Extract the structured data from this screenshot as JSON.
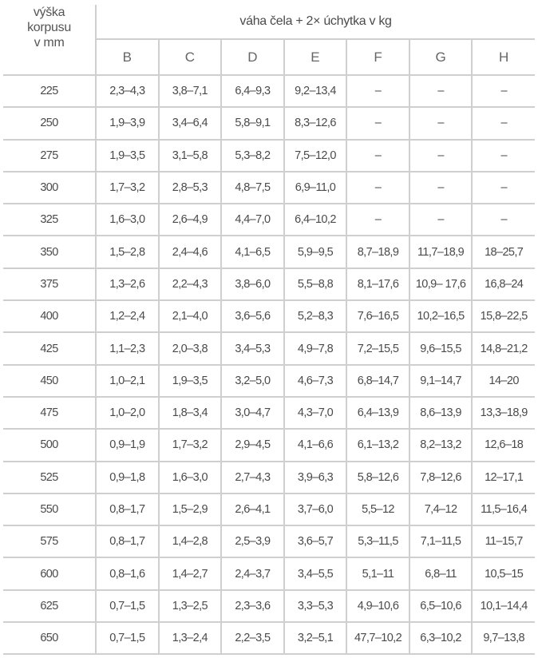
{
  "header": {
    "row_label": [
      "výška",
      "korpusu",
      "v mm"
    ],
    "group_label": "váha čela + 2× úchytka v kg",
    "columns": [
      "B",
      "C",
      "D",
      "E",
      "F",
      "G",
      "H"
    ]
  },
  "rows": [
    {
      "height": "225",
      "values": [
        "2,3–4,3",
        "3,8–7,1",
        "6,4–9,3",
        "9,2–13,4",
        "–",
        "–",
        "–"
      ]
    },
    {
      "height": "250",
      "values": [
        "1,9–3,9",
        "3,4–6,4",
        "5,8–9,1",
        "8,3–12,6",
        "–",
        "–",
        "–"
      ]
    },
    {
      "height": "275",
      "values": [
        "1,9–3,5",
        "3,1–5,8",
        "5,3–8,2",
        "7,5–12,0",
        "–",
        "–",
        "–"
      ]
    },
    {
      "height": "300",
      "values": [
        "1,7–3,2",
        "2,8–5,3",
        "4,8–7,5",
        "6,9–11,0",
        "–",
        "–",
        "–"
      ]
    },
    {
      "height": "325",
      "values": [
        "1,6–3,0",
        "2,6–4,9",
        "4,4–7,0",
        "6,4–10,2",
        "–",
        "–",
        "–"
      ]
    },
    {
      "height": "350",
      "values": [
        "1,5–2,8",
        "2,4–4,6",
        "4,1–6,5",
        "5,9–9,5",
        "8,7–18,9",
        "11,7–18,9",
        "18–25,7"
      ]
    },
    {
      "height": "375",
      "values": [
        "1,3–2,6",
        "2,2–4,3",
        "3,8–6,0",
        "5,5–8,8",
        "8,1–17,6",
        "10,9– 17,6",
        "16,8–24"
      ]
    },
    {
      "height": "400",
      "values": [
        "1,2–2,4",
        "2,1–4,0",
        "3,6–5,6",
        "5,2–8,3",
        "7,6–16,5",
        "10,2–16,5",
        "15,8–22,5"
      ]
    },
    {
      "height": "425",
      "values": [
        "1,1–2,3",
        "2,0–3,8",
        "3,4–5,3",
        "4,9–7,8",
        "7,2–15,5",
        "9,6–15,5",
        "14,8–21,2"
      ]
    },
    {
      "height": "450",
      "values": [
        "1,0–2,1",
        "1,9–3,5",
        "3,2–5,0",
        "4,6–7,3",
        "6,8–14,7",
        "9,1–14,7",
        "14–20"
      ]
    },
    {
      "height": "475",
      "values": [
        "1,0–2,0",
        "1,8–3,4",
        "3,0–4,7",
        "4,3–7,0",
        "6,4–13,9",
        "8,6–13,9",
        "13,3–18,9"
      ]
    },
    {
      "height": "500",
      "values": [
        "0,9–1,9",
        "1,7–3,2",
        "2,9–4,5",
        "4,1–6,6",
        "6,1–13,2",
        "8,2–13,2",
        "12,6–18"
      ]
    },
    {
      "height": "525",
      "values": [
        "0,9–1,8",
        "1,6–3,0",
        "2,7–4,3",
        "3,9–6,3",
        "5,8–12,6",
        "7,8–12,6",
        "12–17,1"
      ]
    },
    {
      "height": "550",
      "values": [
        "0,8–1,7",
        "1,5–2,9",
        "2,6–4,1",
        "3,7–6,0",
        "5,5–12",
        "7,4–12",
        "11,5–16,4"
      ]
    },
    {
      "height": "575",
      "values": [
        "0,8–1,7",
        "1,4–2,8",
        "2,5–3,9",
        "3,6–5,7",
        "5,3–11,5",
        "7,1–11,5",
        "11–15,7"
      ]
    },
    {
      "height": "600",
      "values": [
        "0,8–1,6",
        "1,4–2,7",
        "2,4–3,7",
        "3,4–5,5",
        "5,1–11",
        "6,8–11",
        "10,5–15"
      ]
    },
    {
      "height": "625",
      "values": [
        "0,7–1,5",
        "1,3–2,5",
        "2,3–3,6",
        "3,3–5,3",
        "4,9–10,6",
        "6,5–10,6",
        "10,1–14,4"
      ]
    },
    {
      "height": "650",
      "values": [
        "0,7–1,5",
        "1,3–2,4",
        "2,2–3,5",
        "3,2–5,1",
        "47,7–10,2",
        "6,3–10,2",
        "9,7–13,8"
      ]
    }
  ]
}
